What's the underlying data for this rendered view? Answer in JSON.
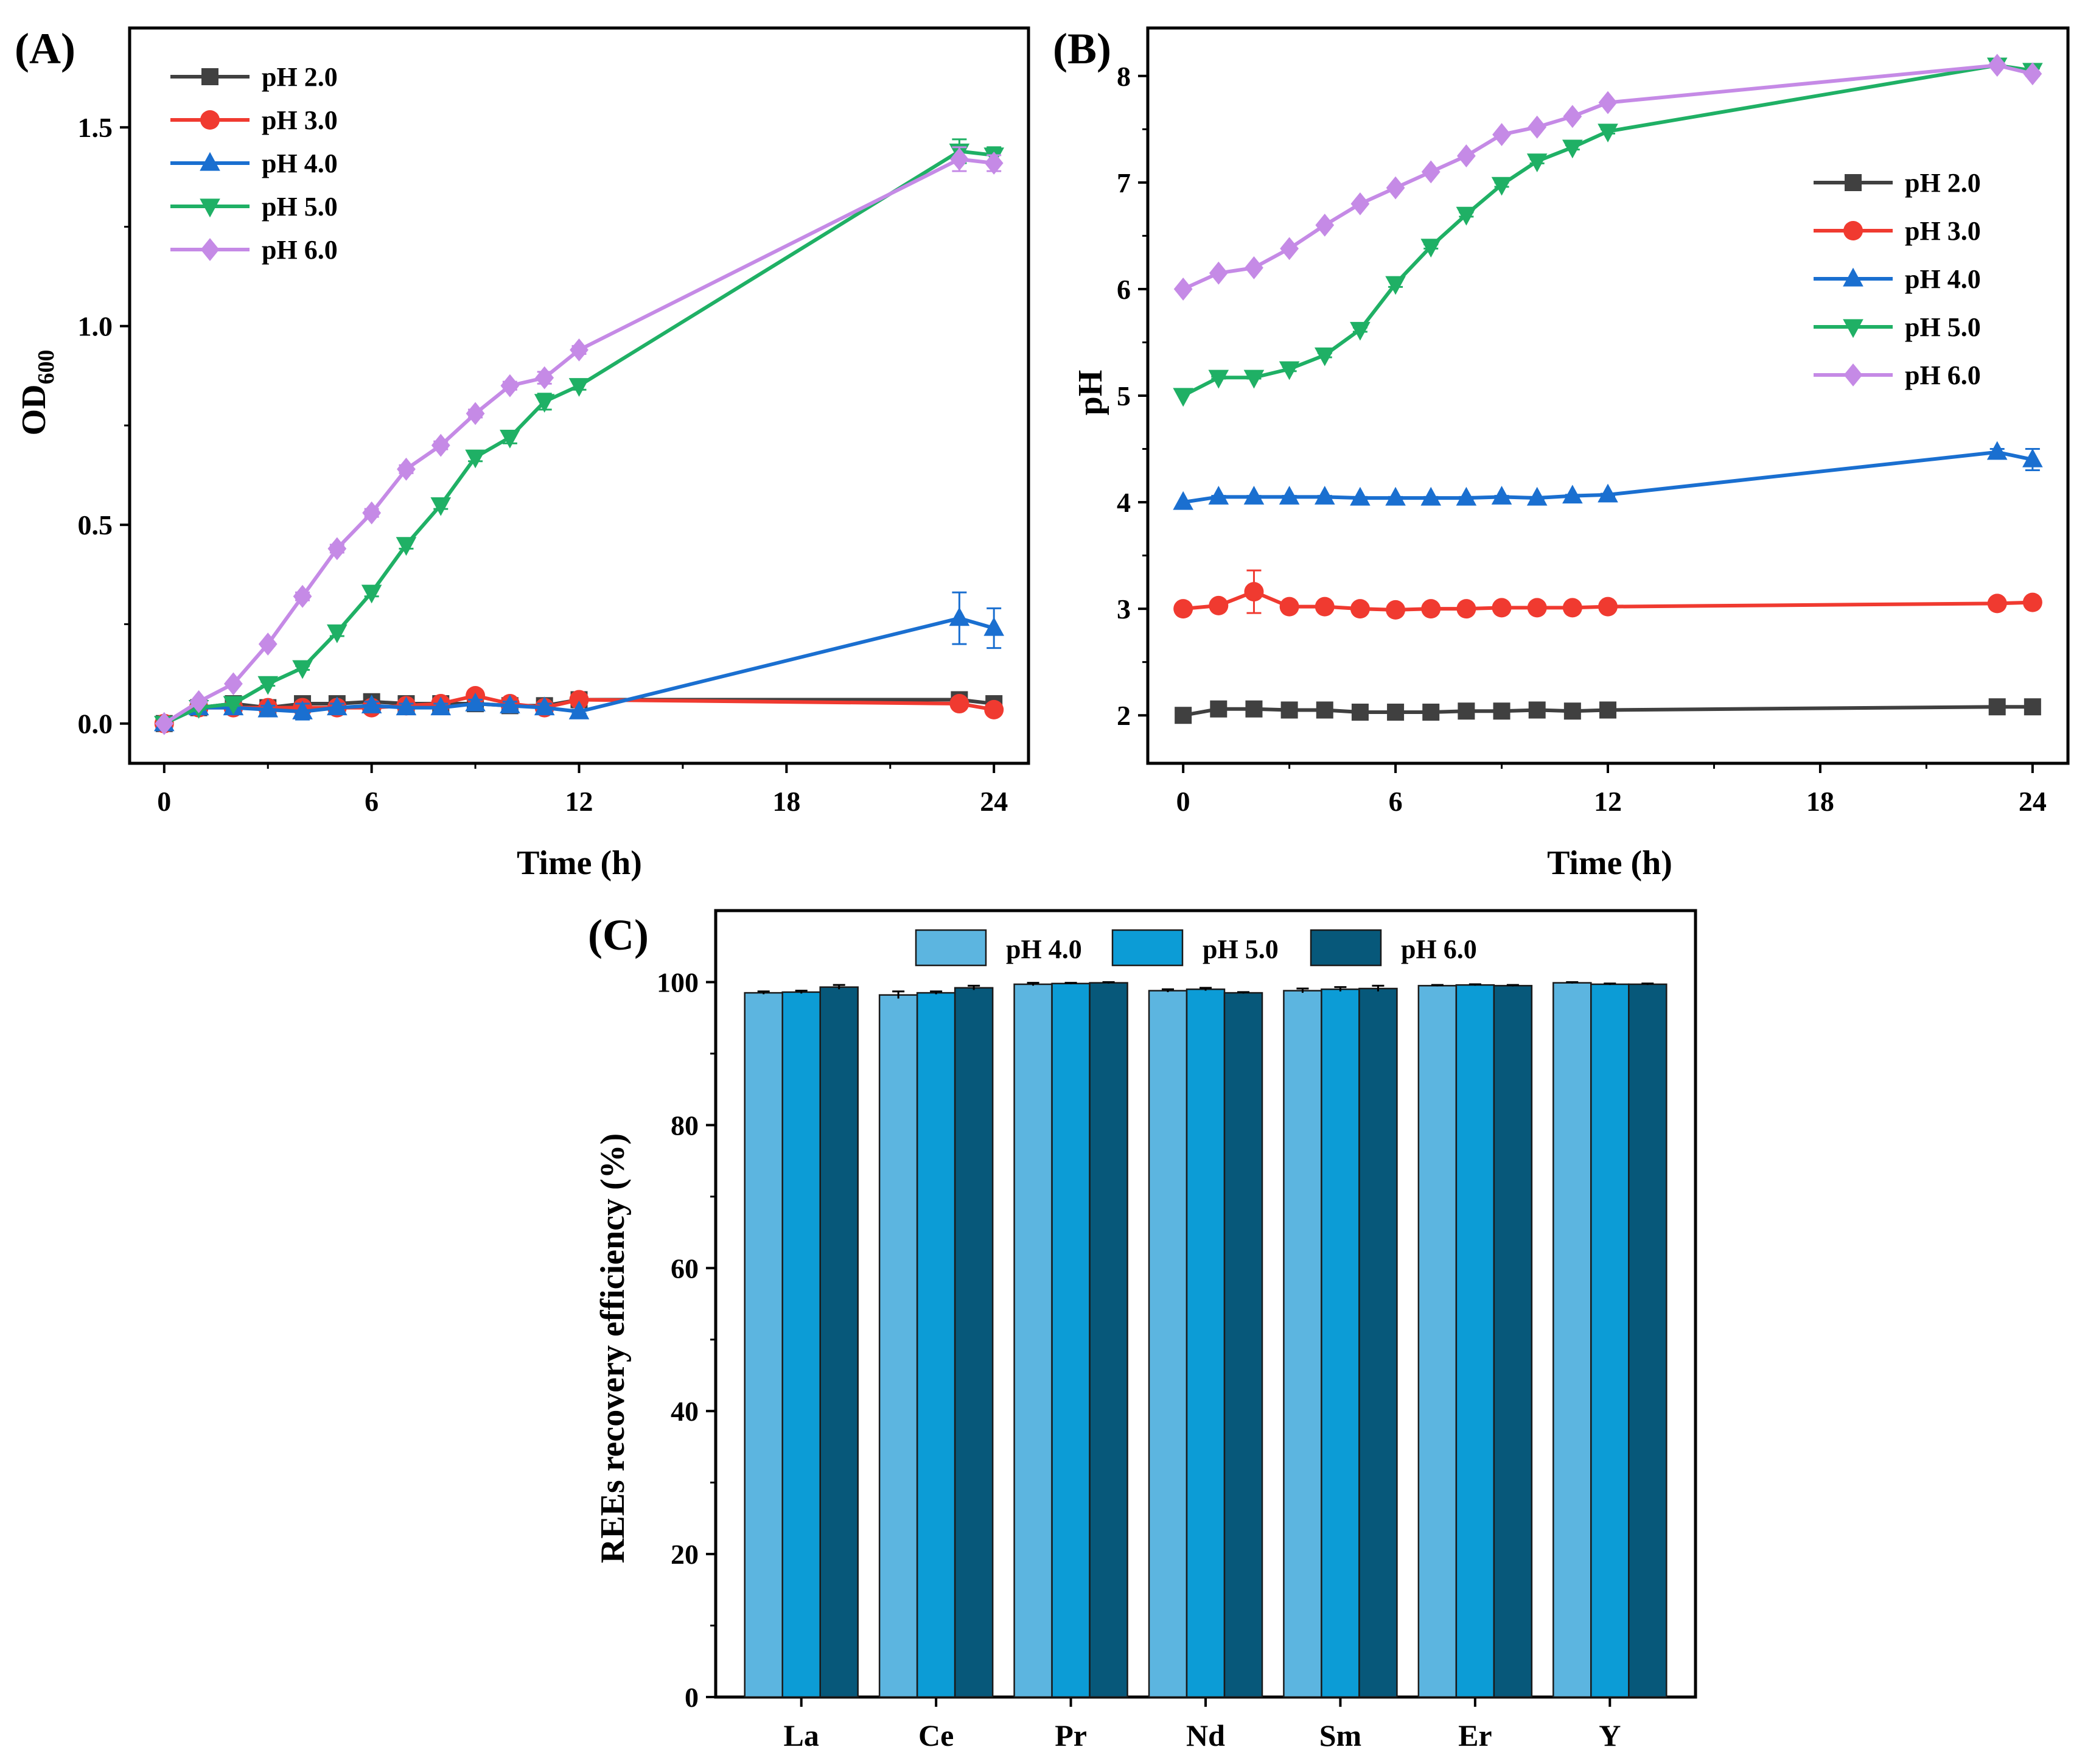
{
  "chart_data": [
    {
      "type": "line",
      "panel_label": "(A)",
      "title": "",
      "xlabel": "Time (h)",
      "ylabel": "OD",
      "ylabel_subscript": "600",
      "xlim": [
        -1,
        25
      ],
      "ylim": [
        -0.1,
        1.75
      ],
      "xticks": [
        0,
        6,
        12,
        18,
        24
      ],
      "yticks": [
        0.0,
        0.5,
        1.0,
        1.5
      ],
      "ytick_labels": [
        "0.0",
        "0.5",
        "1.0",
        "1.5"
      ],
      "legend_position": "top-left",
      "x": [
        0,
        1,
        2,
        3,
        4,
        5,
        6,
        7,
        8,
        9,
        10,
        11,
        12,
        23,
        24
      ],
      "series": [
        {
          "name": "pH 2.0",
          "color": "#404040",
          "marker": "square",
          "values": [
            0.0,
            0.04,
            0.05,
            0.04,
            0.05,
            0.05,
            0.055,
            0.05,
            0.05,
            0.05,
            0.045,
            0.045,
            0.06,
            0.06,
            0.05
          ],
          "errors": [
            0.005,
            0.005,
            0.005,
            0.005,
            0.005,
            0.005,
            0.005,
            0.005,
            0.005,
            0.005,
            0.005,
            0.005,
            0.005,
            0.005,
            0.005
          ]
        },
        {
          "name": "pH 3.0",
          "color": "#f03a30",
          "marker": "circle",
          "values": [
            0.0,
            0.04,
            0.04,
            0.04,
            0.04,
            0.04,
            0.04,
            0.045,
            0.05,
            0.07,
            0.05,
            0.04,
            0.06,
            0.05,
            0.035
          ],
          "errors": [
            0.005,
            0.005,
            0.005,
            0.005,
            0.005,
            0.005,
            0.005,
            0.005,
            0.005,
            0.008,
            0.005,
            0.005,
            0.005,
            0.005,
            0.005
          ]
        },
        {
          "name": "pH 4.0",
          "color": "#1a6fd0",
          "marker": "triangle-up",
          "values": [
            0.0,
            0.04,
            0.04,
            0.035,
            0.03,
            0.04,
            0.045,
            0.04,
            0.04,
            0.05,
            0.045,
            0.04,
            0.03,
            0.265,
            0.24
          ],
          "errors": [
            0.005,
            0.005,
            0.005,
            0.01,
            0.02,
            0.01,
            0.01,
            0.01,
            0.01,
            0.01,
            0.01,
            0.01,
            0.005,
            0.065,
            0.05
          ]
        },
        {
          "name": "pH 5.0",
          "color": "#1fb065",
          "marker": "triangle-down",
          "values": [
            0.0,
            0.04,
            0.05,
            0.1,
            0.14,
            0.23,
            0.33,
            0.45,
            0.55,
            0.67,
            0.72,
            0.81,
            0.85,
            1.44,
            1.43
          ],
          "errors": [
            0.005,
            0.005,
            0.005,
            0.005,
            0.005,
            0.01,
            0.01,
            0.01,
            0.01,
            0.01,
            0.015,
            0.02,
            0.01,
            0.03,
            0.02
          ]
        },
        {
          "name": "pH 6.0",
          "color": "#c58ae6",
          "marker": "diamond",
          "values": [
            0.0,
            0.055,
            0.1,
            0.2,
            0.32,
            0.44,
            0.53,
            0.64,
            0.7,
            0.78,
            0.85,
            0.87,
            0.94,
            1.42,
            1.41
          ],
          "errors": [
            0.005,
            0.005,
            0.005,
            0.005,
            0.01,
            0.01,
            0.01,
            0.01,
            0.01,
            0.01,
            0.01,
            0.015,
            0.01,
            0.03,
            0.02
          ]
        }
      ]
    },
    {
      "type": "line",
      "panel_label": "(B)",
      "title": "",
      "xlabel": "Time (h)",
      "ylabel": "pH",
      "xlim": [
        -1,
        25
      ],
      "ylim": [
        1.55,
        8.45
      ],
      "xticks": [
        0,
        6,
        12,
        18,
        24
      ],
      "yticks": [
        2,
        3,
        4,
        5,
        6,
        7,
        8
      ],
      "ytick_labels": [
        "2",
        "3",
        "4",
        "5",
        "6",
        "7",
        "8"
      ],
      "legend_position": "top-right",
      "x": [
        0,
        1,
        2,
        3,
        4,
        5,
        6,
        7,
        8,
        9,
        10,
        11,
        12,
        23,
        24
      ],
      "series": [
        {
          "name": "pH 2.0",
          "color": "#404040",
          "marker": "square",
          "values": [
            2.0,
            2.06,
            2.06,
            2.05,
            2.05,
            2.03,
            2.03,
            2.03,
            2.04,
            2.04,
            2.05,
            2.04,
            2.05,
            2.08,
            2.08
          ],
          "errors": [
            0,
            0.01,
            0.01,
            0.01,
            0.01,
            0.01,
            0.01,
            0.01,
            0.01,
            0.01,
            0.01,
            0.01,
            0.01,
            0.01,
            0.01
          ]
        },
        {
          "name": "pH 3.0",
          "color": "#f03a30",
          "marker": "circle",
          "values": [
            3.0,
            3.03,
            3.16,
            3.02,
            3.02,
            3.0,
            2.99,
            3.0,
            3.0,
            3.01,
            3.01,
            3.01,
            3.02,
            3.05,
            3.06
          ],
          "errors": [
            0,
            0.01,
            0.2,
            0.01,
            0.01,
            0.01,
            0.01,
            0.01,
            0.01,
            0.01,
            0.01,
            0.01,
            0.01,
            0.01,
            0.01
          ]
        },
        {
          "name": "pH 4.0",
          "color": "#1a6fd0",
          "marker": "triangle-up",
          "values": [
            4.0,
            4.05,
            4.05,
            4.05,
            4.05,
            4.04,
            4.04,
            4.04,
            4.04,
            4.05,
            4.04,
            4.06,
            4.07,
            4.47,
            4.4
          ],
          "errors": [
            0,
            0.01,
            0.01,
            0.01,
            0.01,
            0.01,
            0.01,
            0.01,
            0.01,
            0.01,
            0.01,
            0.01,
            0.01,
            0.03,
            0.1
          ]
        },
        {
          "name": "pH 5.0",
          "color": "#1fb065",
          "marker": "triangle-down",
          "values": [
            5.0,
            5.17,
            5.17,
            5.25,
            5.38,
            5.62,
            6.05,
            6.4,
            6.7,
            6.98,
            7.2,
            7.33,
            7.48,
            8.1,
            8.05
          ],
          "errors": [
            0,
            0.01,
            0.01,
            0.02,
            0.02,
            0.02,
            0.03,
            0.02,
            0.02,
            0.02,
            0.02,
            0.02,
            0.02,
            0.02,
            0.02
          ]
        },
        {
          "name": "pH 6.0",
          "color": "#c58ae6",
          "marker": "diamond",
          "values": [
            6.0,
            6.15,
            6.2,
            6.38,
            6.6,
            6.8,
            6.95,
            7.1,
            7.25,
            7.45,
            7.52,
            7.62,
            7.75,
            8.1,
            8.02
          ],
          "errors": [
            0,
            0.01,
            0.01,
            0.01,
            0.01,
            0.01,
            0.01,
            0.01,
            0.01,
            0.01,
            0.01,
            0.01,
            0.01,
            0.02,
            0.02
          ]
        }
      ]
    },
    {
      "type": "bar",
      "panel_label": "(C)",
      "title": "",
      "xlabel": "",
      "ylabel": "REEs recovery efficiency (%)",
      "ylim": [
        0,
        110
      ],
      "yticks": [
        0,
        20,
        40,
        60,
        80,
        100
      ],
      "ytick_labels": [
        "0",
        "20",
        "40",
        "60",
        "80",
        "100"
      ],
      "legend_position": "top-center",
      "categories": [
        "La",
        "Ce",
        "Pr",
        "Nd",
        "Sm",
        "Er",
        "Y"
      ],
      "series": [
        {
          "name": "pH 4.0",
          "color": "#5cb5e0",
          "values": [
            98.5,
            98.2,
            99.7,
            98.8,
            98.8,
            99.5,
            99.9
          ],
          "errors": [
            0.2,
            0.5,
            0.2,
            0.2,
            0.3,
            0.1,
            0.1
          ]
        },
        {
          "name": "pH 5.0",
          "color": "#0c9cd6",
          "values": [
            98.6,
            98.5,
            99.8,
            99.0,
            99.0,
            99.6,
            99.7
          ],
          "errors": [
            0.2,
            0.2,
            0.1,
            0.2,
            0.3,
            0.1,
            0.1
          ]
        },
        {
          "name": "pH 6.0",
          "color": "#07587a",
          "values": [
            99.3,
            99.2,
            99.9,
            98.5,
            99.1,
            99.5,
            99.7
          ],
          "errors": [
            0.3,
            0.3,
            0.1,
            0.1,
            0.4,
            0.1,
            0.1
          ]
        }
      ]
    }
  ]
}
